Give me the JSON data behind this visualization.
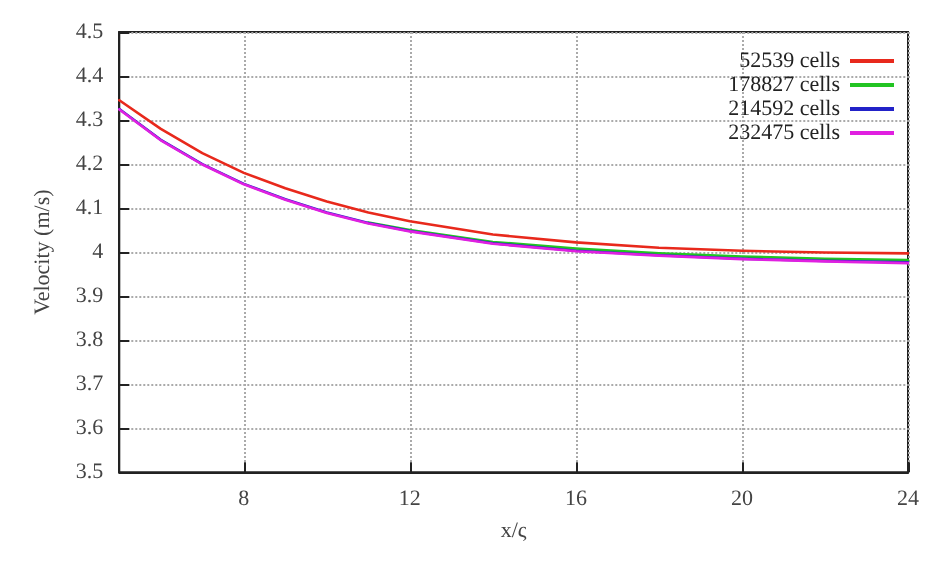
{
  "chart_data": {
    "type": "line",
    "xlabel": "x/ς",
    "ylabel": "Velocity (m/s)",
    "x": [
      5,
      6,
      7,
      8,
      9,
      10,
      11,
      12,
      14,
      16,
      18,
      20,
      22,
      24
    ],
    "series": [
      {
        "name": "52539 cells",
        "color": "#e8291c",
        "values": [
          4.345,
          4.28,
          4.225,
          4.18,
          4.145,
          4.115,
          4.09,
          4.07,
          4.04,
          4.022,
          4.01,
          4.003,
          3.999,
          3.997
        ]
      },
      {
        "name": "178827 cells",
        "color": "#22c422",
        "values": [
          null,
          null,
          null,
          null,
          null,
          null,
          4.067,
          4.05,
          4.023,
          4.008,
          3.997,
          3.99,
          3.985,
          3.982
        ]
      },
      {
        "name": "214592 cells",
        "color": "#2222c8",
        "values": [
          4.325,
          4.255,
          4.2,
          4.155,
          4.12,
          4.09,
          4.066,
          4.048,
          4.02,
          4.003,
          3.993,
          3.985,
          3.98,
          3.977
        ]
      },
      {
        "name": "232475 cells",
        "color": "#e020e0",
        "values": [
          4.324,
          4.254,
          4.199,
          4.154,
          4.119,
          4.089,
          4.065,
          4.047,
          4.019,
          4.002,
          3.992,
          3.984,
          3.979,
          3.975
        ]
      }
    ],
    "xlim": [
      5,
      24
    ],
    "xticks": [
      8,
      12,
      16,
      20,
      24
    ],
    "ylim": [
      3.5,
      4.5
    ],
    "yticks": [
      3.5,
      3.6,
      3.7,
      3.8,
      3.9,
      4,
      4.1,
      4.2,
      4.3,
      4.4,
      4.5
    ],
    "grid": true,
    "legend": "top right",
    "marker": "none",
    "line_style": "solid"
  }
}
